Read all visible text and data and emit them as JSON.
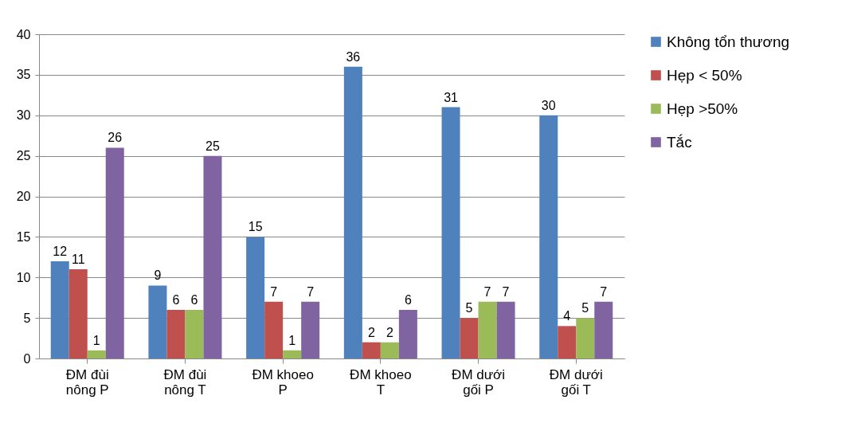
{
  "chart_data": {
    "type": "bar",
    "categories": [
      "ĐM đùi\nnông P",
      "ĐM đùi\nnông T",
      "ĐM khoeo\nP",
      "ĐM khoeo\nT",
      "ĐM dưới\ngối P",
      "ĐM dưới\ngối T"
    ],
    "series": [
      {
        "name": "Không tổn thương",
        "color": "#4f81bd",
        "values": [
          12,
          9,
          15,
          36,
          31,
          30
        ]
      },
      {
        "name": "Hẹp < 50%",
        "color": "#c0504d",
        "values": [
          11,
          6,
          7,
          2,
          5,
          4
        ]
      },
      {
        "name": "Hẹp >50%",
        "color": "#9bbb59",
        "values": [
          1,
          6,
          1,
          2,
          7,
          5
        ]
      },
      {
        "name": "Tắc",
        "color": "#8064a2",
        "values": [
          26,
          25,
          7,
          6,
          7,
          7
        ]
      }
    ],
    "ylim": [
      0,
      40
    ],
    "yticks": [
      0,
      5,
      10,
      15,
      20,
      25,
      30,
      35,
      40
    ],
    "grid": "y",
    "legend": "right",
    "data_labels": true
  }
}
